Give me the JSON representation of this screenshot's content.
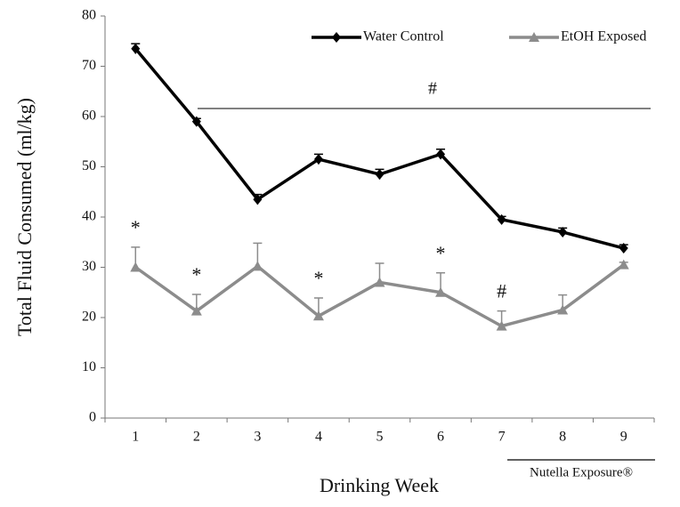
{
  "chart_data": {
    "type": "line",
    "x_label": "Drinking Week",
    "y_label": "Total Fluid Consumed  (ml/kg)",
    "categories": [
      "1",
      "2",
      "3",
      "4",
      "5",
      "6",
      "7",
      "8",
      "9"
    ],
    "series": [
      {
        "name": "Water Control",
        "color": "#000000",
        "marker": "diamond",
        "values": [
          73.5,
          59,
          43.5,
          51.5,
          48.5,
          52.5,
          39.5,
          37,
          33.8
        ],
        "errors": [
          1,
          0.6,
          1,
          1,
          1,
          1,
          0.6,
          0.8,
          0.7
        ]
      },
      {
        "name": "EtOH Exposed",
        "color": "#8c8c8c",
        "marker": "triangle",
        "values": [
          30,
          21.3,
          30.2,
          20.3,
          27,
          25,
          18.3,
          21.5,
          30.5
        ],
        "errors": [
          4,
          3.3,
          4.6,
          3.6,
          3.8,
          3.9,
          3,
          3,
          0.5
        ]
      }
    ],
    "annotations": [
      {
        "text": "*",
        "category": "1"
      },
      {
        "text": "*",
        "category": "2"
      },
      {
        "text": "*",
        "category": "4"
      },
      {
        "text": "*",
        "category": "6"
      },
      {
        "text": "#",
        "category": "7"
      }
    ],
    "significance_label": "#",
    "period_label": "Nutella Exposure®",
    "ylim": [
      0,
      80
    ],
    "yticks": [
      0,
      10,
      20,
      30,
      40,
      50,
      60,
      70,
      80
    ],
    "legend": "upper right",
    "grid": false
  }
}
